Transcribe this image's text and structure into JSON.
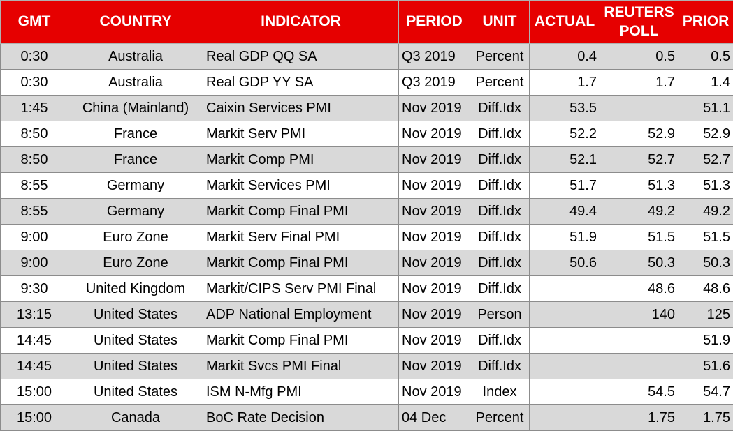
{
  "table": {
    "headers": [
      "GMT",
      "COUNTRY",
      "INDICATOR",
      "PERIOD",
      "UNIT",
      "ACTUAL",
      "REUTERS POLL",
      "PRIOR"
    ],
    "rows": [
      [
        "0:30",
        "Australia",
        "Real GDP QQ SA",
        "Q3 2019",
        "Percent",
        "0.4",
        "0.5",
        "0.5"
      ],
      [
        "0:30",
        "Australia",
        "Real GDP YY SA",
        "Q3 2019",
        "Percent",
        "1.7",
        "1.7",
        "1.4"
      ],
      [
        "1:45",
        "China (Mainland)",
        "Caixin Services PMI",
        "Nov 2019",
        "Diff.Idx",
        "53.5",
        null,
        "51.1"
      ],
      [
        "8:50",
        "France",
        "Markit Serv PMI",
        "Nov 2019",
        "Diff.Idx",
        "52.2",
        "52.9",
        "52.9"
      ],
      [
        "8:50",
        "France",
        "Markit Comp PMI",
        "Nov 2019",
        "Diff.Idx",
        "52.1",
        "52.7",
        "52.7"
      ],
      [
        "8:55",
        "Germany",
        "Markit Services PMI",
        "Nov 2019",
        "Diff.Idx",
        "51.7",
        "51.3",
        "51.3"
      ],
      [
        "8:55",
        "Germany",
        "Markit Comp Final PMI",
        "Nov 2019",
        "Diff.Idx",
        "49.4",
        "49.2",
        "49.2"
      ],
      [
        "9:00",
        "Euro Zone",
        "Markit Serv Final PMI",
        "Nov 2019",
        "Diff.Idx",
        "51.9",
        "51.5",
        "51.5"
      ],
      [
        "9:00",
        "Euro Zone",
        "Markit Comp Final PMI",
        "Nov 2019",
        "Diff.Idx",
        "50.6",
        "50.3",
        "50.3"
      ],
      [
        "9:30",
        "United Kingdom",
        "Markit/CIPS Serv PMI Final",
        "Nov 2019",
        "Diff.Idx",
        null,
        "48.6",
        "48.6"
      ],
      [
        "13:15",
        "United States",
        "ADP National Employment",
        "Nov 2019",
        "Person",
        null,
        "140",
        "125"
      ],
      [
        "14:45",
        "United States",
        "Markit Comp Final PMI",
        "Nov 2019",
        "Diff.Idx",
        null,
        null,
        "51.9"
      ],
      [
        "14:45",
        "United States",
        "Markit Svcs PMI Final",
        "Nov 2019",
        "Diff.Idx",
        null,
        null,
        "51.6"
      ],
      [
        "15:00",
        "United States",
        "ISM N-Mfg PMI",
        "Nov 2019",
        "Index",
        null,
        "54.5",
        "54.7"
      ],
      [
        "15:00",
        "Canada",
        "BoC Rate Decision",
        "04 Dec",
        "Percent",
        null,
        "1.75",
        "1.75"
      ]
    ]
  }
}
